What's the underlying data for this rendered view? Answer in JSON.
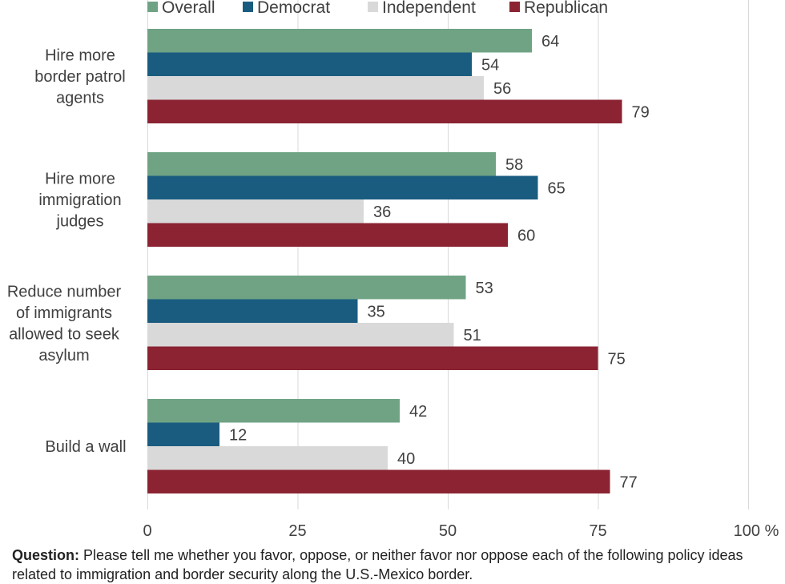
{
  "chart_data": {
    "type": "bar",
    "orientation": "horizontal",
    "categories": [
      [
        "Hire more",
        "border patrol",
        "agents"
      ],
      [
        "Hire more",
        "immigration",
        "judges"
      ],
      [
        "Reduce number",
        "of immigrants",
        "allowed to seek",
        "asylum"
      ],
      [
        "Build a wall"
      ]
    ],
    "series": [
      {
        "name": "Overall",
        "color": "#6fa384",
        "values": [
          64,
          58,
          53,
          42
        ]
      },
      {
        "name": "Democrat",
        "color": "#1a5c80",
        "values": [
          54,
          65,
          35,
          12
        ]
      },
      {
        "name": "Independent",
        "color": "#d9d9d9",
        "values": [
          56,
          36,
          51,
          40
        ]
      },
      {
        "name": "Republican",
        "color": "#8b2332",
        "values": [
          79,
          60,
          75,
          77
        ]
      }
    ],
    "xlim": [
      0,
      100
    ],
    "ticks": [
      "0",
      "25",
      "50",
      "75",
      "100 %"
    ],
    "tick_values": [
      0,
      25,
      50,
      75,
      100
    ],
    "grid": true,
    "legend_position": "top"
  },
  "question": {
    "label": "Question:",
    "text": "Please tell me whether you favor, oppose, or neither favor nor oppose each of the following policy ideas related to immigration and border security along the U.S.-Mexico border."
  }
}
